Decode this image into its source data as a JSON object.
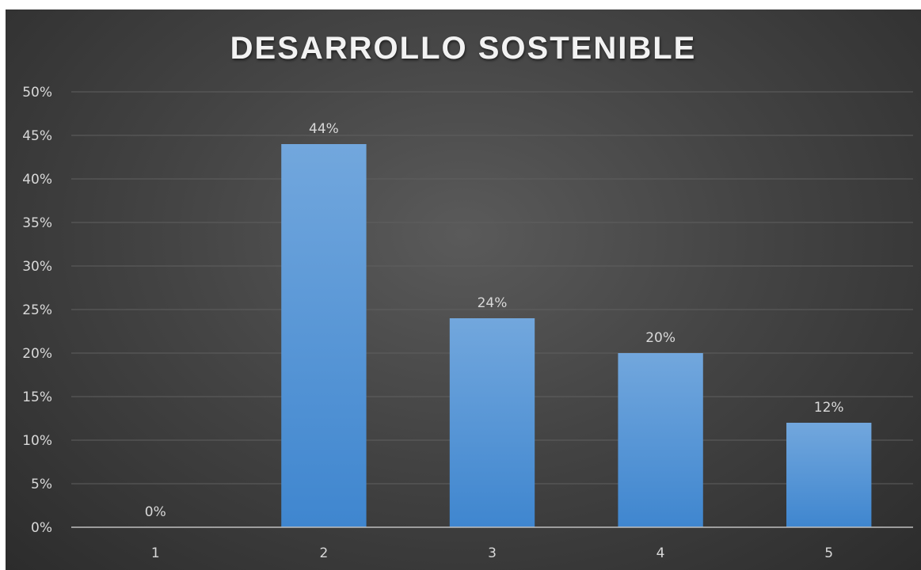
{
  "chart_data": {
    "type": "bar",
    "title": "DESARROLLO SOSTENIBLE",
    "categories": [
      "1",
      "2",
      "3",
      "4",
      "5"
    ],
    "values": [
      0,
      44,
      24,
      20,
      12
    ],
    "data_labels": [
      "0%",
      "44%",
      "24%",
      "20%",
      "12%"
    ],
    "y_ticks": [
      "0%",
      "5%",
      "10%",
      "15%",
      "20%",
      "25%",
      "30%",
      "35%",
      "40%",
      "45%",
      "50%"
    ],
    "ylim": [
      0,
      50
    ],
    "grid": true,
    "legend": "none",
    "xlabel": "",
    "ylabel": ""
  },
  "colors": {
    "bar_top": "#72a7dd",
    "bar_bottom": "#3f86cf",
    "grid": "#5f5f5f",
    "axis": "#bfbfbf",
    "text": "#d9d9d9"
  }
}
